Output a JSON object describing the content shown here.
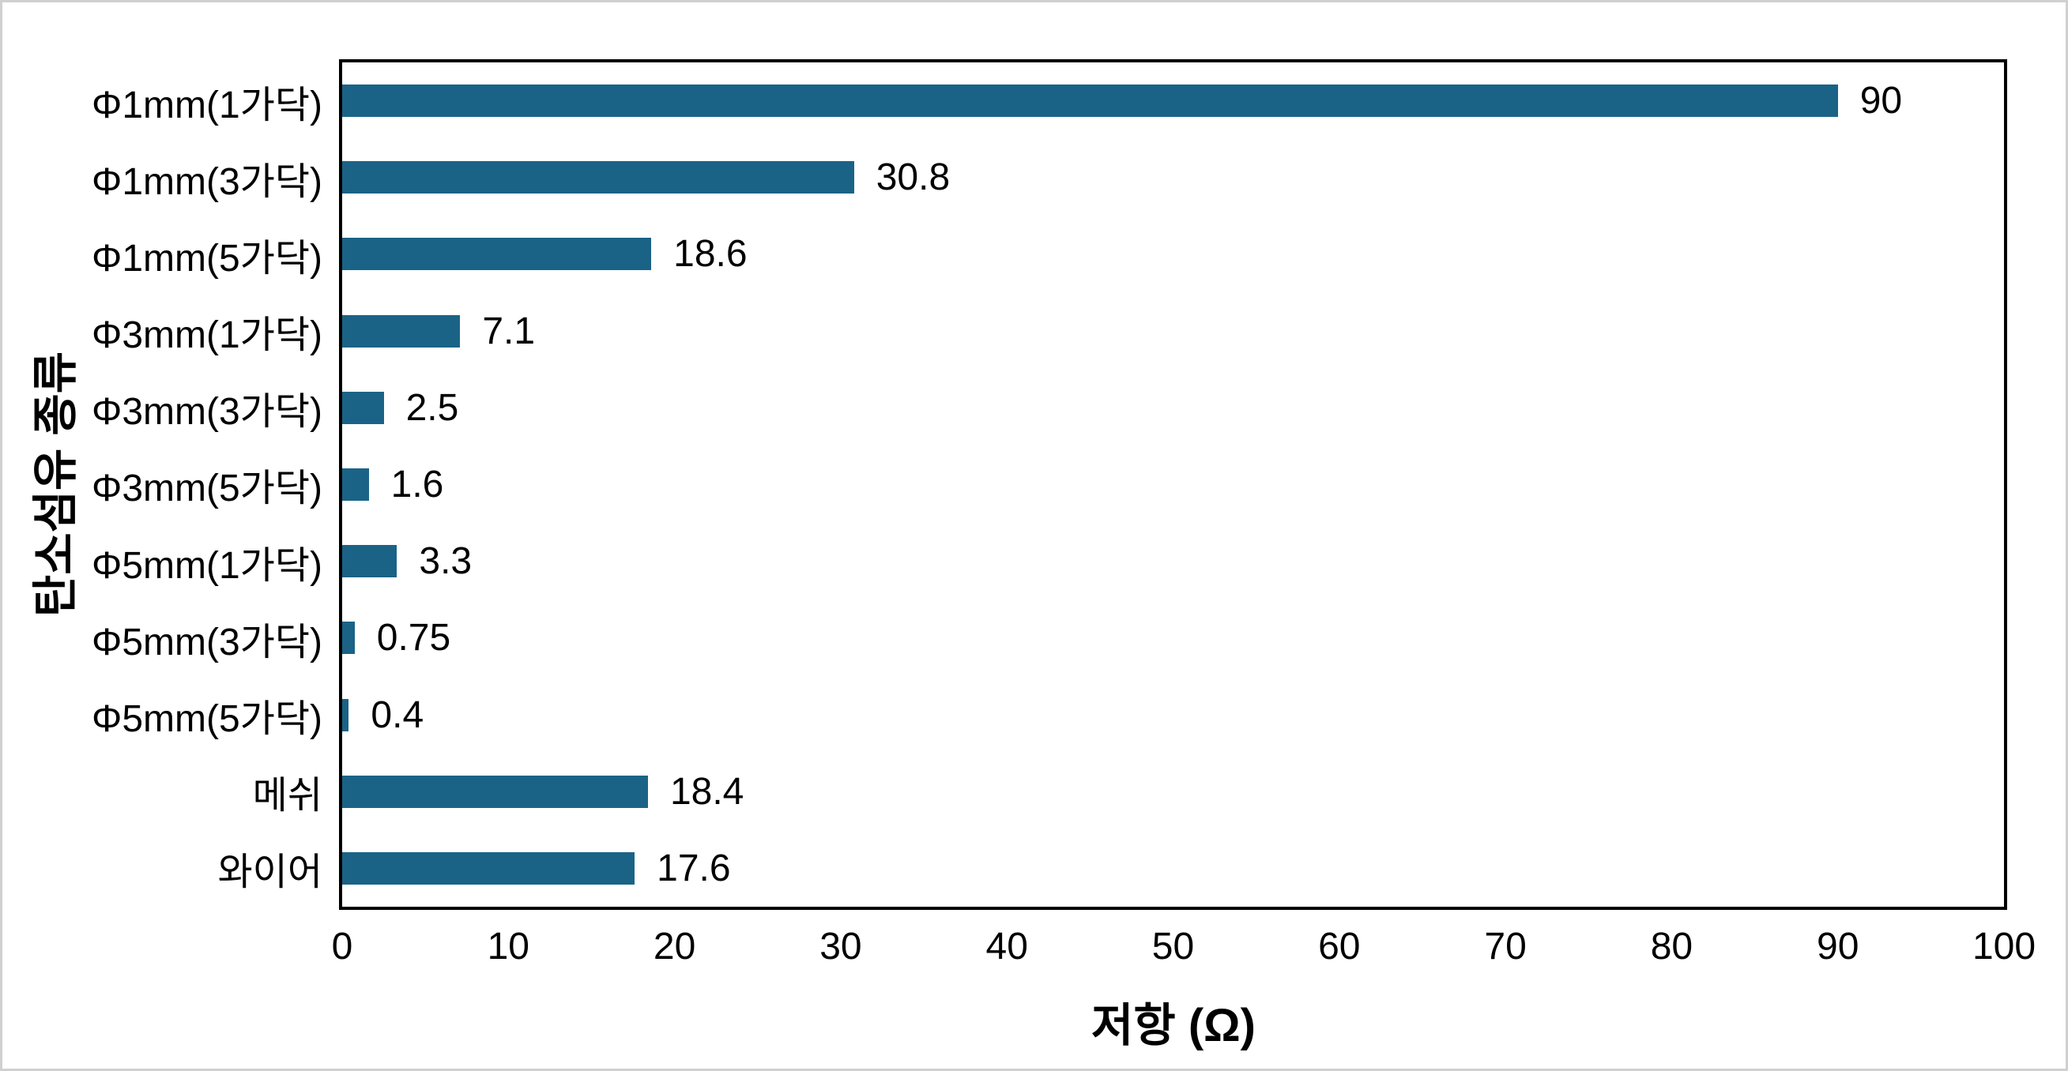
{
  "chart_data": {
    "type": "bar",
    "orientation": "horizontal",
    "title": "",
    "xlabel": "저항 (Ω)",
    "ylabel": "탄소섬유 종류",
    "categories": [
      "Φ1mm(1가닥)",
      "Φ1mm(3가닥)",
      "Φ1mm(5가닥)",
      "Φ3mm(1가닥)",
      "Φ3mm(3가닥)",
      "Φ3mm(5가닥)",
      "Φ5mm(1가닥)",
      "Φ5mm(3가닥)",
      "Φ5mm(5가닥)",
      "메쉬",
      "와이어"
    ],
    "values": [
      90,
      30.8,
      18.6,
      7.1,
      2.5,
      1.6,
      3.3,
      0.75,
      0.4,
      18.4,
      17.6
    ],
    "value_labels": [
      "90",
      "30.8",
      "18.6",
      "7.1",
      "2.5",
      "1.6",
      "3.3",
      "0.75",
      "0.4",
      "18.4",
      "17.6"
    ],
    "xlim": [
      0,
      100
    ],
    "x_ticks": [
      0,
      10,
      20,
      30,
      40,
      50,
      60,
      70,
      80,
      90,
      100
    ],
    "grid": false,
    "legend": false,
    "colors": {
      "bar": "#1A6386",
      "text": "#000000",
      "plot_border": "#000000",
      "outer_border": "#d0d0d0",
      "background": "#ffffff"
    }
  }
}
